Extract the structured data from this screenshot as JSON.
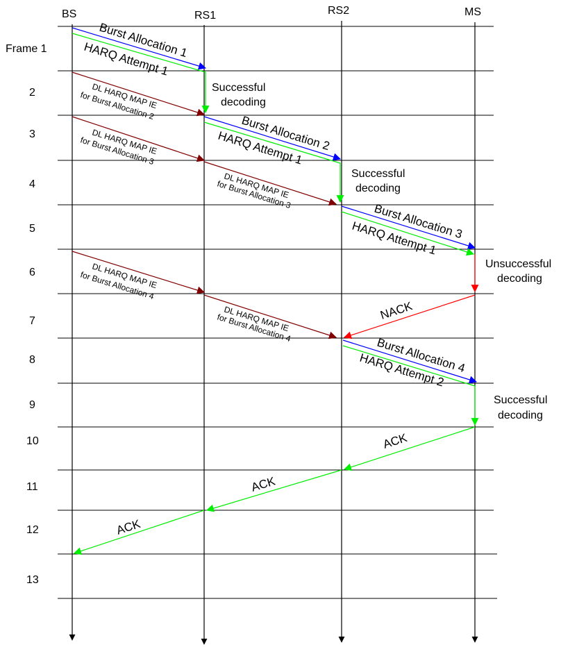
{
  "entities": [
    {
      "id": "bs",
      "label": "BS"
    },
    {
      "id": "rs1",
      "label": "RS1"
    },
    {
      "id": "rs2",
      "label": "RS2"
    },
    {
      "id": "ms",
      "label": "MS"
    }
  ],
  "frames": [
    "Frame 1",
    "2",
    "3",
    "4",
    "5",
    "6",
    "7",
    "8",
    "9",
    "10",
    "11",
    "12",
    "13"
  ],
  "colors": {
    "burst": "#0000ff",
    "harq": "#00ee00",
    "map": "#800000",
    "nack": "#ff0000",
    "ack": "#00ee00",
    "line": "#000000"
  },
  "messages": {
    "burst1": "Burst Allocation 1",
    "harq1": "HARQ Attempt 1",
    "map2_line1": "DL HARQ MAP IE",
    "map2_line2": "for Burst Allocation 2",
    "burst2": "Burst Allocation 2",
    "harq2": "HARQ Attempt 1",
    "map3a_line1": "DL HARQ MAP IE",
    "map3a_line2": "for Burst Allocation 3",
    "map3b_line1": "DL HARQ MAP IE",
    "map3b_line2": "for Burst Allocation 3",
    "burst3": "Burst Allocation 3",
    "harq3": "HARQ Attempt 1",
    "map4a_line1": "DL HARQ MAP IE",
    "map4a_line2": "for Burst Allocation 4",
    "map4b_line1": "DL HARQ MAP IE",
    "map4b_line2": "for Burst Allocation 4",
    "nack": "NACK",
    "burst4": "Burst Allocation 4",
    "harq4": "HARQ Attempt 2",
    "ack1": "ACK",
    "ack2": "ACK",
    "ack3": "ACK"
  },
  "notes": {
    "decode1_line1": "Successful",
    "decode1_line2": "decoding",
    "decode2_line1": "Successful",
    "decode2_line2": "decoding",
    "decode3_line1": "Unsuccessful",
    "decode3_line2": "decoding",
    "decode4_line1": "Successful",
    "decode4_line2": "decoding"
  }
}
